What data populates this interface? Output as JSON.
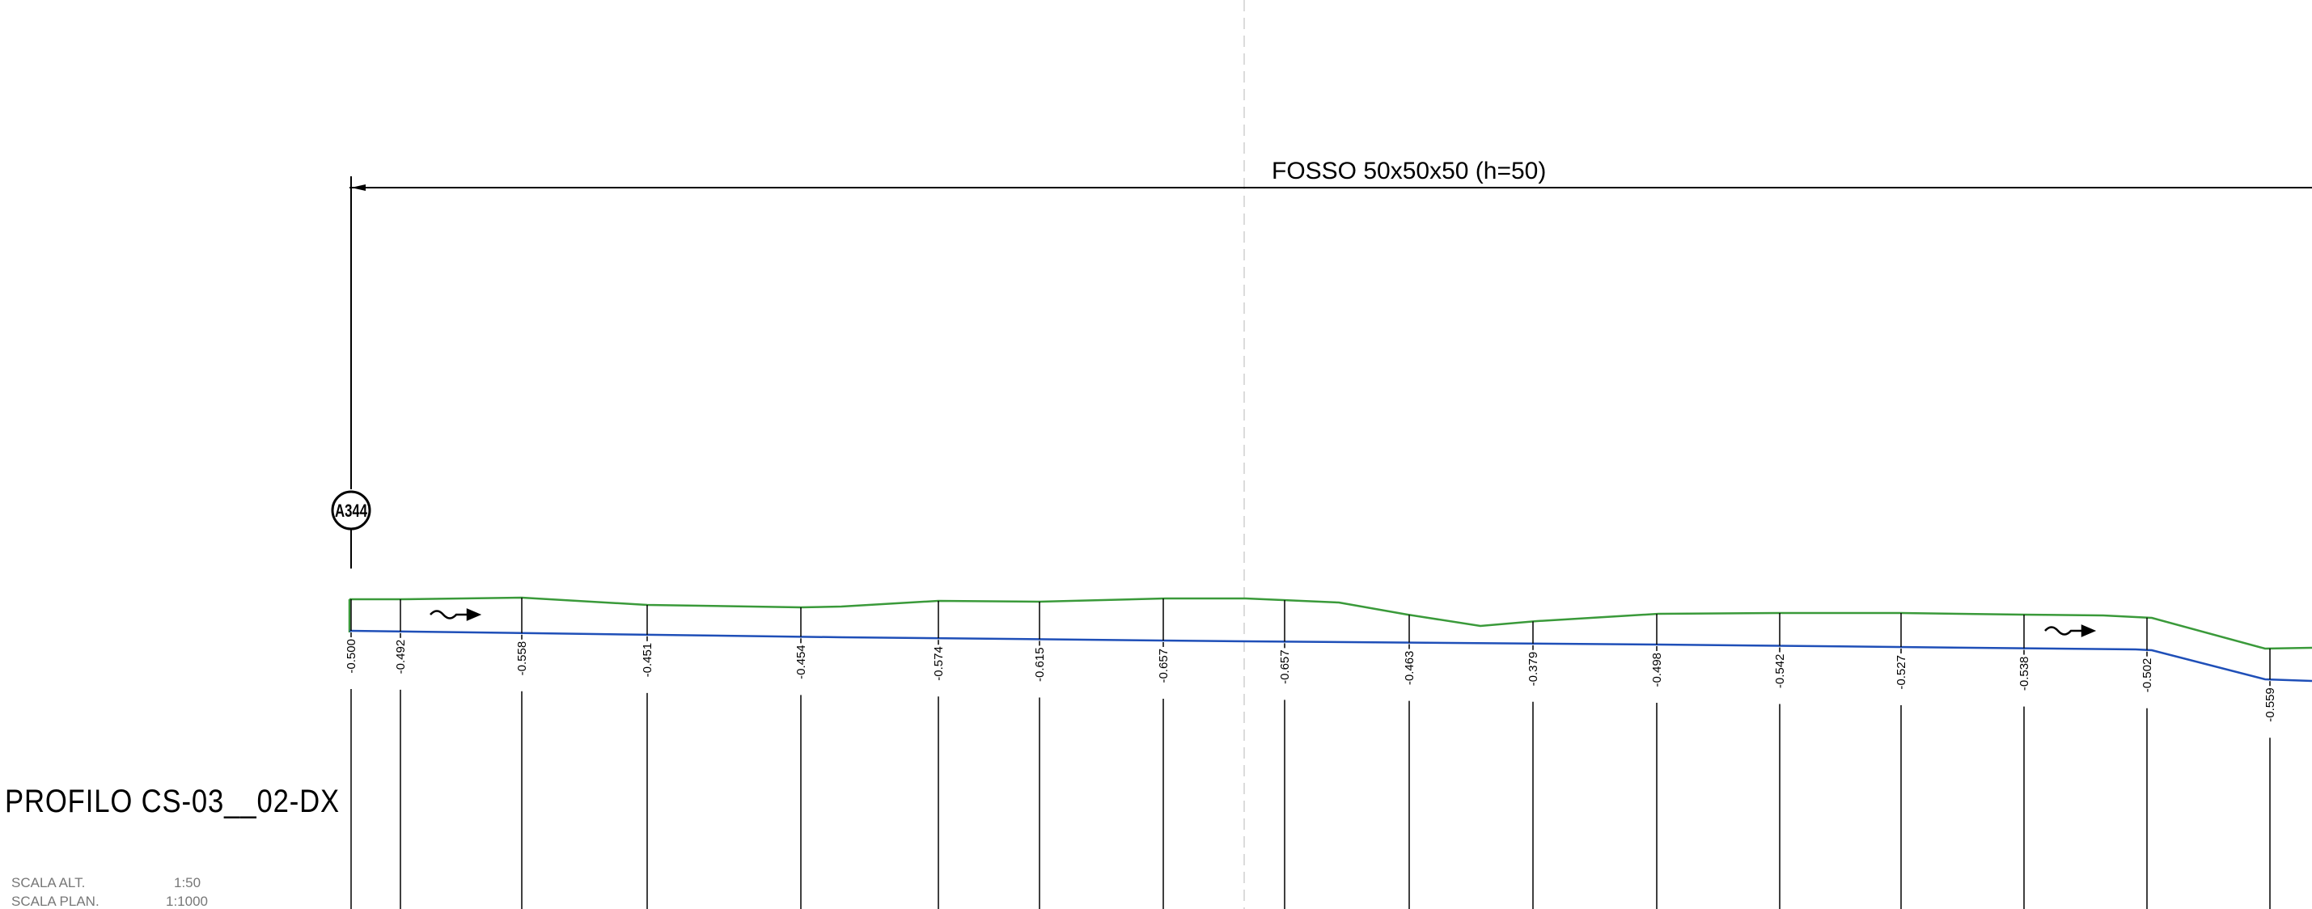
{
  "drawing": {
    "title": "PROFILO CS-03__02-DX",
    "dimension_label": "FOSSO 50x50x50 (h=50)",
    "marker_label": "A344",
    "scale_lines": [
      {
        "label": "SCALA ALT.",
        "value": "1:50"
      },
      {
        "label": "SCALA PLAN.",
        "value": "1:1000"
      }
    ],
    "colors": {
      "terrain_line": "#3a9a3a",
      "bottom_line": "#1f4fb8",
      "ink": "#000000"
    },
    "depth_labels": [
      "-0.500",
      "-0.492",
      "-0.558",
      "-0.451",
      "-0.454",
      "-0.574",
      "-0.615",
      "-0.657",
      "-0.657",
      "-0.463",
      "-0.379",
      "-0.498",
      "-0.542",
      "-0.527",
      "-0.538",
      "-0.502",
      "-0.559"
    ]
  }
}
